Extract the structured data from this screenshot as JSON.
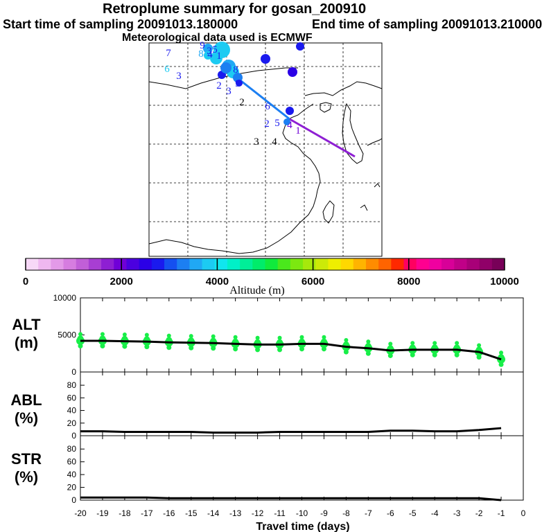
{
  "header": {
    "title": "Retroplume summary for gosan_200910",
    "start": "Start time of sampling 20091013.180000",
    "end": "End time of sampling 20091013.210000",
    "met": "Meteorological data used is ECMWF"
  },
  "colorbar": {
    "ticks": [
      "0",
      "2000",
      "4000",
      "6000",
      "8000",
      "10000"
    ],
    "label": "Altitude (m)",
    "colors": [
      "#f7d8f7",
      "#efb8f0",
      "#e39ae8",
      "#d67de0",
      "#c15fd8",
      "#a83ed3",
      "#8e1fd3",
      "#7000d8",
      "#4b00e0",
      "#2b00e6",
      "#1a1aee",
      "#1550f0",
      "#1c7ff2",
      "#20a8f4",
      "#1ccbf2",
      "#10e6ee",
      "#00f0c8",
      "#00ee98",
      "#00ec6a",
      "#10ea3c",
      "#4ae81c",
      "#7ce810",
      "#a6e80c",
      "#ccea08",
      "#eeee00",
      "#ffd800",
      "#ffb400",
      "#ff8c00",
      "#ff6400",
      "#ff2800",
      "#ff0060",
      "#ff0090",
      "#f000a0",
      "#d80098",
      "#c00088",
      "#a80078",
      "#900068",
      "#780058"
    ]
  },
  "map": {
    "markers": [
      {
        "t": "7",
        "c": "#1a1aee"
      },
      {
        "t": "6",
        "c": "#1ccbf2"
      },
      {
        "t": "3",
        "c": "#1a1aee"
      },
      {
        "t": "9",
        "c": "#1a1aee"
      },
      {
        "t": "8",
        "c": "#20a8f4"
      },
      {
        "t": "4",
        "c": "#1a1aee"
      },
      {
        "t": "1",
        "c": "#1a1aee"
      },
      {
        "t": "3",
        "c": "#1a1aee"
      },
      {
        "t": "5",
        "c": "#1a1aee"
      },
      {
        "t": "2",
        "c": "#1a1aee"
      },
      {
        "t": "3",
        "c": "#1a1aee"
      },
      {
        "t": "2",
        "c": "#000000"
      },
      {
        "t": "6",
        "c": "#1a1aee"
      },
      {
        "t": "2",
        "c": "#1a1aee"
      },
      {
        "t": "5",
        "c": "#1a1aee"
      },
      {
        "t": "4",
        "c": "#7000d8"
      },
      {
        "t": "1",
        "c": "#7000d8"
      },
      {
        "t": "3",
        "c": "#000000"
      },
      {
        "t": "4",
        "c": "#000000"
      },
      {
        "t": "8",
        "c": "#1a1aee"
      },
      {
        "t": "9",
        "c": "#1a1aee"
      }
    ]
  },
  "panels": {
    "alt": {
      "label1": "ALT",
      "label2": "(m)"
    },
    "abl": {
      "label1": "ABL",
      "label2": "(%)"
    },
    "str": {
      "label1": "STR",
      "label2": "(%)"
    }
  },
  "xlabel": "Travel time (days)",
  "chart_data": [
    {
      "type": "line",
      "title": "ALT",
      "ylabel": "(m)",
      "x": [
        -20,
        -19,
        -18,
        -17,
        -16,
        -15,
        -14,
        -13,
        -12,
        -11,
        -10,
        -9,
        -8,
        -7,
        -6,
        -5,
        -4,
        -3,
        -2,
        -1
      ],
      "values": [
        4200,
        4200,
        4150,
        4100,
        4000,
        3950,
        3900,
        3800,
        3700,
        3700,
        3800,
        3800,
        3400,
        3200,
        2900,
        3000,
        3000,
        3000,
        2700,
        1700
      ],
      "ylim": [
        0,
        10000
      ],
      "yticks": [
        "0",
        "5000",
        "10000"
      ]
    },
    {
      "type": "line",
      "title": "ABL",
      "ylabel": "(%)",
      "x": [
        -20,
        -19,
        -18,
        -17,
        -16,
        -15,
        -14,
        -13,
        -12,
        -11,
        -10,
        -9,
        -8,
        -7,
        -6,
        -5,
        -4,
        -3,
        -2,
        -1
      ],
      "values": [
        7,
        7,
        6,
        6,
        6,
        6,
        5,
        5,
        5,
        6,
        6,
        6,
        6,
        6,
        8,
        8,
        7,
        7,
        9,
        12
      ],
      "ylim": [
        0,
        90
      ],
      "yticks": [
        "0",
        "20",
        "40",
        "60",
        "80"
      ]
    },
    {
      "type": "line",
      "title": "STR",
      "ylabel": "(%)",
      "x": [
        -20,
        -19,
        -18,
        -17,
        -16,
        -15,
        -14,
        -13,
        -12,
        -11,
        -10,
        -9,
        -8,
        -7,
        -6,
        -5,
        -4,
        -3,
        -2,
        -1
      ],
      "values": [
        4,
        4,
        4,
        4,
        3,
        3,
        3,
        3,
        3,
        3,
        3,
        3,
        3,
        3,
        3,
        3,
        3,
        3,
        3,
        0
      ],
      "ylim": [
        0,
        90
      ],
      "yticks": [
        "0",
        "20",
        "40",
        "60",
        "80"
      ]
    }
  ],
  "xticks": [
    "-20",
    "-19",
    "-18",
    "-17",
    "-16",
    "-15",
    "-14",
    "-13",
    "-12",
    "-11",
    "-10",
    "-9",
    "-8",
    "-7",
    "-6",
    "-5",
    "-4",
    "-3",
    "-2",
    "-1",
    "0"
  ]
}
